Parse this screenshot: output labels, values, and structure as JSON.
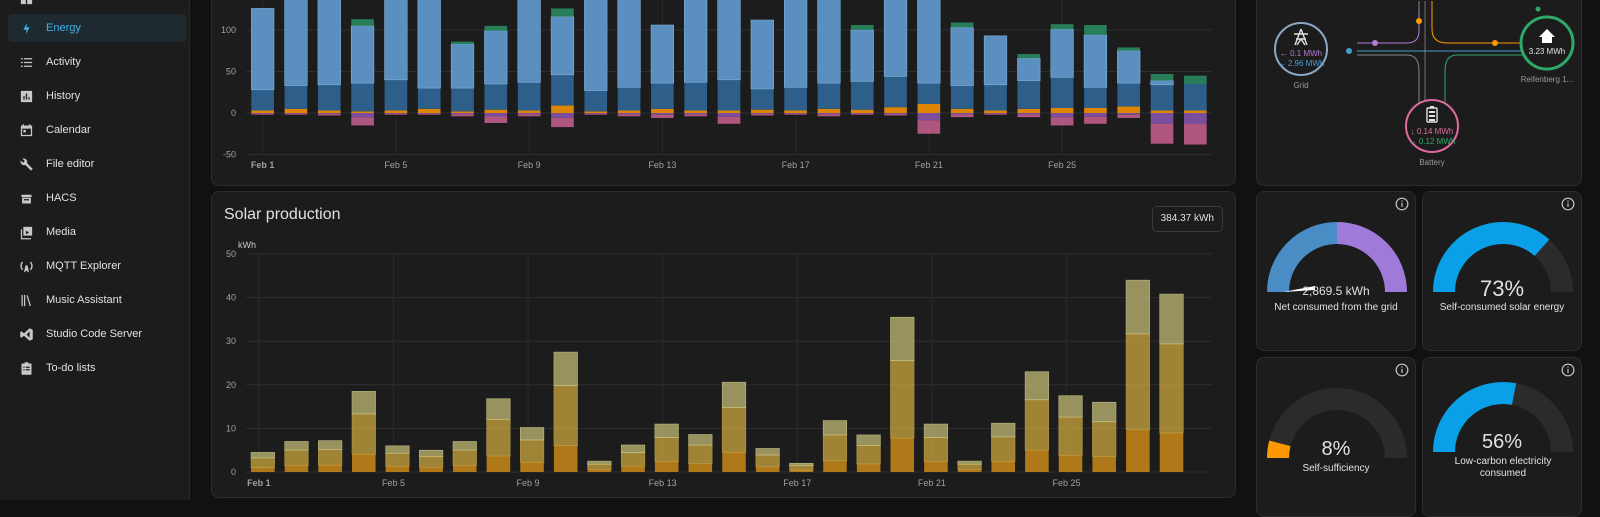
{
  "sidebar": {
    "items": [
      {
        "label": "Energy",
        "icon": "lightning-icon",
        "active": true
      },
      {
        "label": "Activity",
        "icon": "list-icon"
      },
      {
        "label": "History",
        "icon": "chart-box-icon"
      },
      {
        "label": "Calendar",
        "icon": "calendar-icon"
      },
      {
        "label": "File editor",
        "icon": "wrench-icon"
      },
      {
        "label": "HACS",
        "icon": "hacs-icon"
      },
      {
        "label": "Media",
        "icon": "play-box-icon"
      },
      {
        "label": "MQTT Explorer",
        "icon": "antenna-icon"
      },
      {
        "label": "Music Assistant",
        "icon": "library-icon"
      },
      {
        "label": "Studio Code Server",
        "icon": "code-icon"
      },
      {
        "label": "To-do lists",
        "icon": "clipboard-list-icon"
      }
    ]
  },
  "energy_usage": {
    "chart_data": {
      "type": "bar",
      "stacked": true,
      "y_ticks": [
        "100",
        "50",
        "0",
        "-50"
      ],
      "x_ticks": [
        "Feb 1",
        "Feb 5",
        "Feb 9",
        "Feb 13",
        "Feb 17",
        "Feb 21",
        "Feb 25"
      ],
      "ylim": [
        -55,
        128
      ],
      "series_colors": {
        "grid": "#4a8cc4",
        "solar_direct": "#ff9800",
        "battery_out": "#e06aa0",
        "return": "#8b6fc0",
        "solar_top": "#2a8a60"
      },
      "grid_consumption": [
        123,
        156,
        156,
        103,
        153,
        156,
        81,
        95,
        138,
        107,
        142,
        140,
        101,
        146,
        145,
        108,
        140,
        156,
        96,
        146,
        147,
        98,
        90,
        61,
        95,
        88,
        67,
        36,
        32
      ],
      "top_segment": [
        0,
        0,
        0,
        8,
        0,
        0,
        3,
        6,
        0,
        10,
        0,
        0,
        0,
        0,
        11,
        0,
        0,
        0,
        6,
        0,
        10,
        6,
        0,
        5,
        6,
        12,
        4,
        8,
        10
      ],
      "solar_direct": [
        3,
        5,
        3,
        2,
        3,
        5,
        2,
        4,
        3,
        9,
        2,
        3,
        5,
        3,
        3,
        4,
        3,
        5,
        4,
        7,
        11,
        5,
        3,
        5,
        6,
        6,
        8,
        3,
        3
      ],
      "negative": [
        -2,
        -2,
        -3,
        -15,
        -2,
        -2,
        -4,
        -12,
        -4,
        -17,
        -2,
        -4,
        -6,
        -4,
        -13,
        -3,
        -2,
        -4,
        -2,
        -3,
        -25,
        -5,
        -2,
        -5,
        -15,
        -13,
        -6,
        -37,
        -38
      ],
      "x": [
        "Feb 1",
        "Feb 2",
        "Feb 3",
        "Feb 4",
        "Feb 5",
        "Feb 6",
        "Feb 7",
        "Feb 8",
        "Feb 9",
        "Feb 10",
        "Feb 11",
        "Feb 12",
        "Feb 13",
        "Feb 14",
        "Feb 15",
        "Feb 16",
        "Feb 17",
        "Feb 18",
        "Feb 19",
        "Feb 20",
        "Feb 21",
        "Feb 22",
        "Feb 23",
        "Feb 24",
        "Feb 25",
        "Feb 26",
        "Feb 27",
        "Feb 28",
        "Feb 29"
      ]
    }
  },
  "solar_production": {
    "title": "Solar production",
    "total": "384.37 kWh",
    "chart_data": {
      "type": "bar",
      "stacked": true,
      "ylabel": "kWh",
      "y_ticks": [
        "50",
        "40",
        "30",
        "20",
        "10",
        "0"
      ],
      "ylim": [
        0,
        50
      ],
      "x_ticks": [
        "Feb 1",
        "Feb 5",
        "Feb 9",
        "Feb 13",
        "Feb 17",
        "Feb 21",
        "Feb 25"
      ],
      "x": [
        "Feb 1",
        "Feb 2",
        "Feb 3",
        "Feb 4",
        "Feb 5",
        "Feb 6",
        "Feb 7",
        "Feb 8",
        "Feb 9",
        "Feb 10",
        "Feb 11",
        "Feb 12",
        "Feb 13",
        "Feb 14",
        "Feb 15",
        "Feb 16",
        "Feb 17",
        "Feb 18",
        "Feb 19",
        "Feb 20",
        "Feb 21",
        "Feb 22",
        "Feb 23",
        "Feb 24",
        "Feb 25",
        "Feb 26",
        "Feb 27",
        "Feb 28",
        "Feb 29"
      ],
      "totals": [
        4.5,
        7,
        7.2,
        18.5,
        6,
        5,
        7,
        16.8,
        10.2,
        27.5,
        2.5,
        6.2,
        11,
        8.6,
        20.6,
        5.4,
        2,
        11.8,
        8.5,
        35.5,
        11,
        2.5,
        11.2,
        23,
        17.5,
        16,
        44,
        40.8,
        0
      ],
      "colors": [
        "#c98a1a",
        "#d9b040",
        "#b8b070"
      ]
    }
  },
  "energy_distribution": {
    "grid_label": "Grid",
    "grid_in": "← 0.1 MWh",
    "grid_out": "→ 2.96 MWh",
    "home_value": "3.23 MWh",
    "home_label": "Reifenberg 1...",
    "battery_in": "↓ 0.14 MWh",
    "battery_out": "→ 0.12 MWh",
    "battery_label": "Battery"
  },
  "gauges": [
    {
      "value": "2,869.5 kWh",
      "label": "Net consumed from the grid"
    },
    {
      "value": "73%",
      "label": "Self-consumed solar energy",
      "fraction": 0.73
    },
    {
      "value": "8%",
      "label": "Self-sufficiency",
      "fraction": 0.08
    },
    {
      "value": "56%",
      "label": "Low-carbon electricity consumed",
      "fraction": 0.56
    }
  ]
}
